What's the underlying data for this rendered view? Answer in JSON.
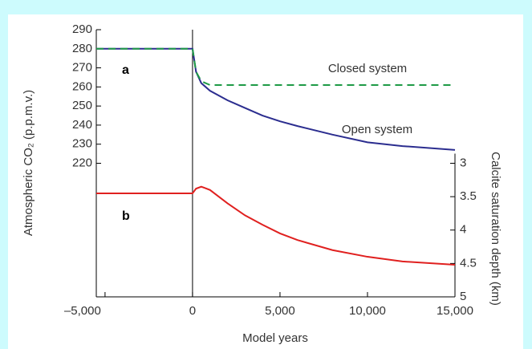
{
  "chart_data": {
    "type": "line",
    "xlabel": "Model years",
    "ylabel": "Atmospheric CO₂ (p.p.m.v.)",
    "y2label": "Calcite saturation depth (km)",
    "x": [
      -5500,
      -5000,
      0,
      200,
      500,
      1000,
      2000,
      3000,
      4000,
      5000,
      6000,
      8000,
      10000,
      12000,
      15000
    ],
    "series": [
      {
        "name": "Open system",
        "color": "#2b2d8f",
        "dash": false,
        "values": [
          280,
          280,
          280,
          268,
          262,
          258,
          253,
          249,
          245,
          242,
          239.5,
          235,
          231,
          229,
          227
        ]
      },
      {
        "name": "Closed system",
        "color": "#1e9a46",
        "dash": true,
        "values": [
          280,
          280,
          280,
          268,
          263,
          261,
          261,
          261,
          261,
          261,
          261,
          261,
          261,
          261,
          261
        ]
      },
      {
        "name": "b",
        "color": "#e0201f",
        "axis": "y2",
        "dash": false,
        "values": [
          3.45,
          3.45,
          3.45,
          3.38,
          3.35,
          3.4,
          3.6,
          3.78,
          3.92,
          4.05,
          4.15,
          4.3,
          4.4,
          4.47,
          4.52
        ]
      }
    ],
    "annotations": [
      "a"
    ],
    "xlim": [
      -5500,
      15000
    ],
    "xticks": [
      {
        "value": -5000,
        "label": "–5,000"
      },
      0,
      {
        "value": 5000,
        "label": "5,000"
      },
      {
        "value": 10000,
        "label": "10,000"
      },
      {
        "value": 15000,
        "label": "15,000"
      }
    ],
    "ylim": [
      150,
      290
    ],
    "yticks": [
      220,
      230,
      240,
      250,
      260,
      270,
      280,
      290
    ],
    "y2lim": [
      5,
      1
    ],
    "y2ticks": [
      3,
      3.5,
      4,
      4.5,
      5
    ],
    "grid": false
  }
}
